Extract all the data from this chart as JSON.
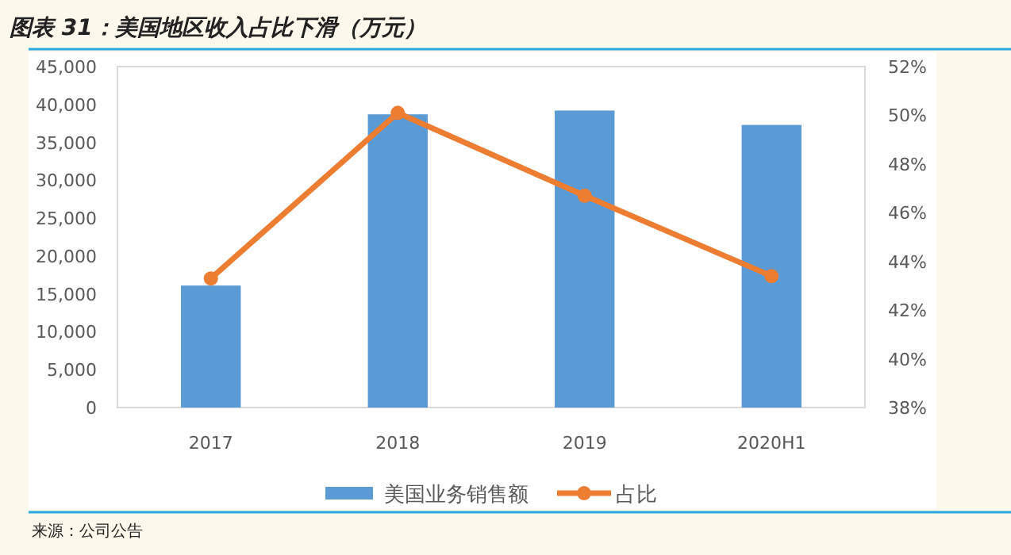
{
  "chart_data": {
    "type": "bar",
    "title": "图表 31：美国地区收入占比下滑（万元）",
    "categories": [
      "2017",
      "2018",
      "2019",
      "2020H1"
    ],
    "series": [
      {
        "name": "美国业务销售额",
        "color": "#5b9bd5",
        "values": [
          16100,
          38700,
          39200,
          37300
        ]
      },
      {
        "name": "占比",
        "type": "line",
        "axis": "y2",
        "color": "#ed7d31",
        "values": [
          43.3,
          50.1,
          46.7,
          43.4
        ]
      }
    ],
    "ylim": [
      0,
      45000
    ],
    "yticks": [
      {
        "value": 0,
        "label": "0"
      },
      {
        "value": 5000,
        "label": "5,000"
      },
      {
        "value": 10000,
        "label": "10,000"
      },
      {
        "value": 15000,
        "label": "15,000"
      },
      {
        "value": 20000,
        "label": "20,000"
      },
      {
        "value": 25000,
        "label": "25,000"
      },
      {
        "value": 30000,
        "label": "30,000"
      },
      {
        "value": 35000,
        "label": "35,000"
      },
      {
        "value": 40000,
        "label": "40,000"
      },
      {
        "value": 45000,
        "label": "45,000"
      }
    ],
    "y2lim": [
      38,
      52
    ],
    "y2ticks": [
      {
        "value": 38,
        "label": "38%"
      },
      {
        "value": 40,
        "label": "40%"
      },
      {
        "value": 42,
        "label": "42%"
      },
      {
        "value": 44,
        "label": "44%"
      },
      {
        "value": 46,
        "label": "46%"
      },
      {
        "value": 48,
        "label": "48%"
      },
      {
        "value": 50,
        "label": "50%"
      },
      {
        "value": 52,
        "label": "52%"
      }
    ],
    "marker": "circle",
    "legend": "bottom",
    "annotations": [
      "来源：公司公告"
    ]
  }
}
